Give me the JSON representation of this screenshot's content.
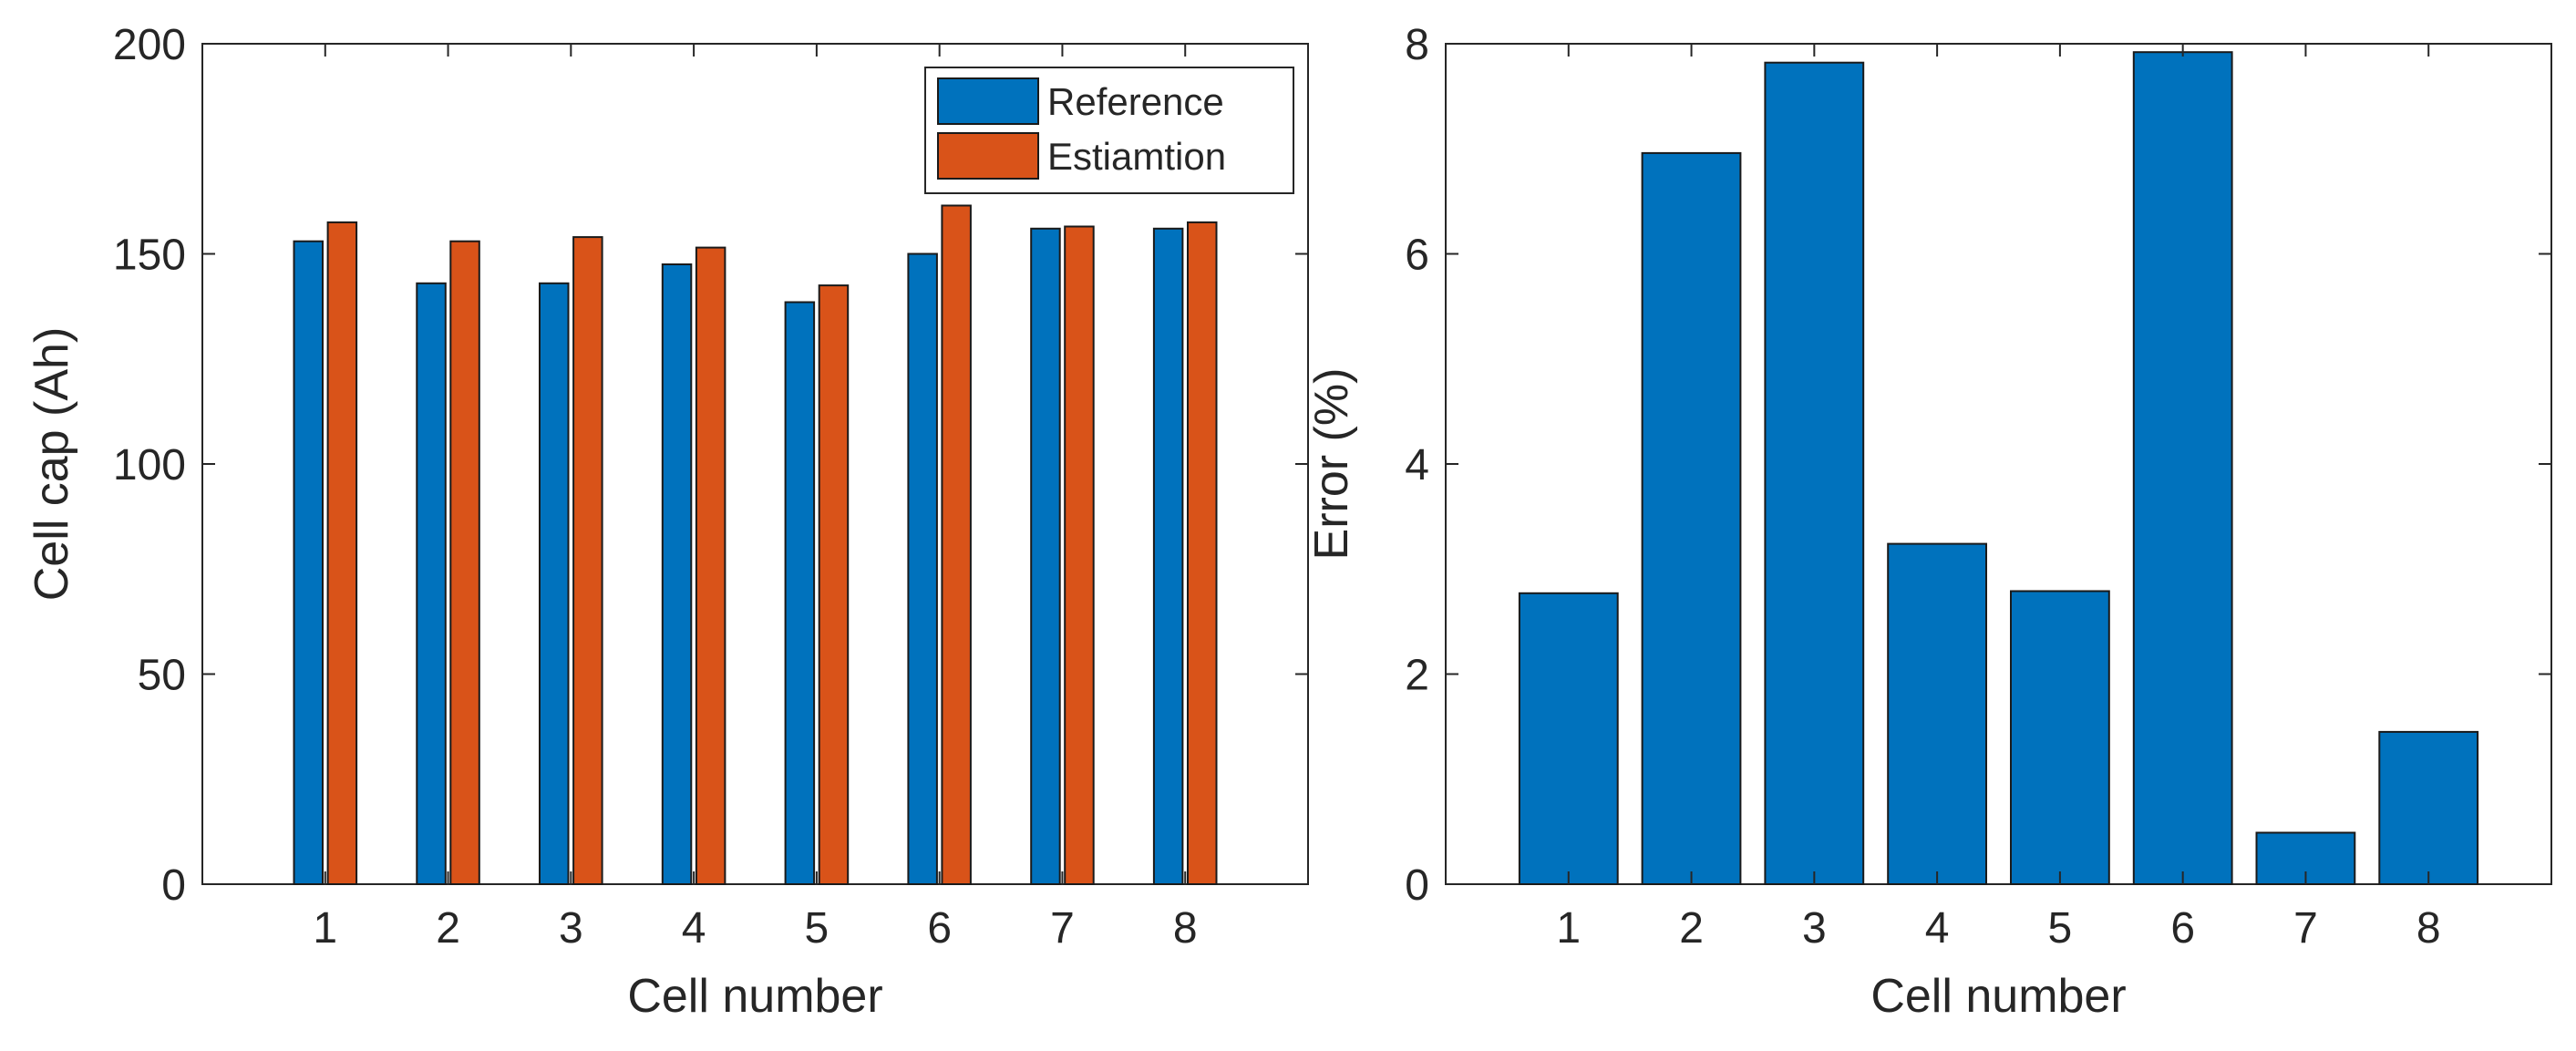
{
  "chart_data": [
    {
      "type": "bar",
      "xlabel": "Cell number",
      "ylabel": "Cell cap (Ah)",
      "ylim": [
        0,
        200
      ],
      "yticks": [
        0,
        50,
        100,
        150,
        200
      ],
      "categories": [
        "1",
        "2",
        "3",
        "4",
        "5",
        "6",
        "7",
        "8"
      ],
      "series": [
        {
          "name": "Reference",
          "color": "#0072BD",
          "values": [
            153,
            143,
            143,
            147.5,
            138.5,
            150,
            156,
            156
          ]
        },
        {
          "name": "Estiamtion",
          "color": "#D95319",
          "values": [
            157.5,
            153,
            154,
            151.5,
            142.5,
            161.5,
            156.5,
            157.5
          ]
        }
      ],
      "legend": {
        "position": "top-right",
        "entries": [
          "Reference",
          "Estiamtion"
        ]
      },
      "grid": false
    },
    {
      "type": "bar",
      "xlabel": "Cell number",
      "ylabel": "Error (%)",
      "ylim": [
        0,
        8
      ],
      "yticks": [
        0,
        2,
        4,
        6,
        8
      ],
      "categories": [
        "1",
        "2",
        "3",
        "4",
        "5",
        "6",
        "7",
        "8"
      ],
      "series": [
        {
          "name": "Error",
          "color": "#0072BD",
          "values": [
            2.77,
            6.96,
            7.82,
            3.24,
            2.79,
            7.92,
            0.49,
            1.45
          ]
        }
      ],
      "grid": false
    }
  ]
}
